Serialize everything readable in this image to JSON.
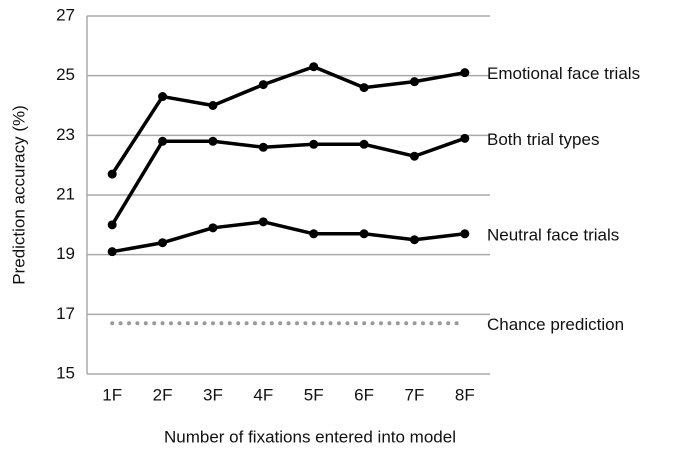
{
  "chart_data": {
    "type": "line",
    "x_label": "Number of fixations entered into model",
    "y_label": "Prediction accuracy (%)",
    "categories": [
      "1F",
      "2F",
      "3F",
      "4F",
      "5F",
      "6F",
      "7F",
      "8F"
    ],
    "series": [
      {
        "name": "Emotional face trials",
        "color": "#000000",
        "values": [
          21.7,
          24.3,
          24.0,
          24.7,
          25.3,
          24.6,
          24.8,
          25.1
        ]
      },
      {
        "name": "Both trial types",
        "color": "#000000",
        "values": [
          20.0,
          22.8,
          22.8,
          22.6,
          22.7,
          22.7,
          22.3,
          22.9
        ]
      },
      {
        "name": "Neutral face trials",
        "color": "#000000",
        "values": [
          19.1,
          19.4,
          19.9,
          20.1,
          19.7,
          19.7,
          19.5,
          19.7
        ]
      },
      {
        "name": "Chance prediction",
        "color": "#999999",
        "dotted": true,
        "values": [
          16.7,
          16.7,
          16.7,
          16.7,
          16.7,
          16.7,
          16.7,
          16.7
        ]
      }
    ],
    "ylim": [
      15,
      27
    ],
    "yticks": [
      15,
      17,
      19,
      21,
      23,
      25,
      27
    ],
    "grid": true
  }
}
